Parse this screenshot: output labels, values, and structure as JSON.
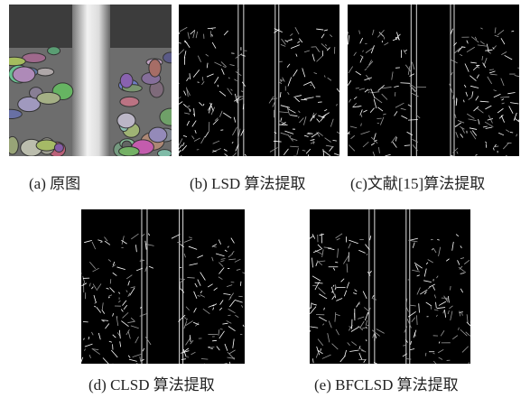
{
  "figure": {
    "panels": [
      {
        "caption": "(a) 原图"
      },
      {
        "caption": "(b) LSD 算法提取"
      },
      {
        "caption": "(c)文献[15]算法提取"
      },
      {
        "caption": "(d) CLSD 算法提取"
      },
      {
        "caption": "(e) BFCLSD 算法提取"
      }
    ]
  }
}
